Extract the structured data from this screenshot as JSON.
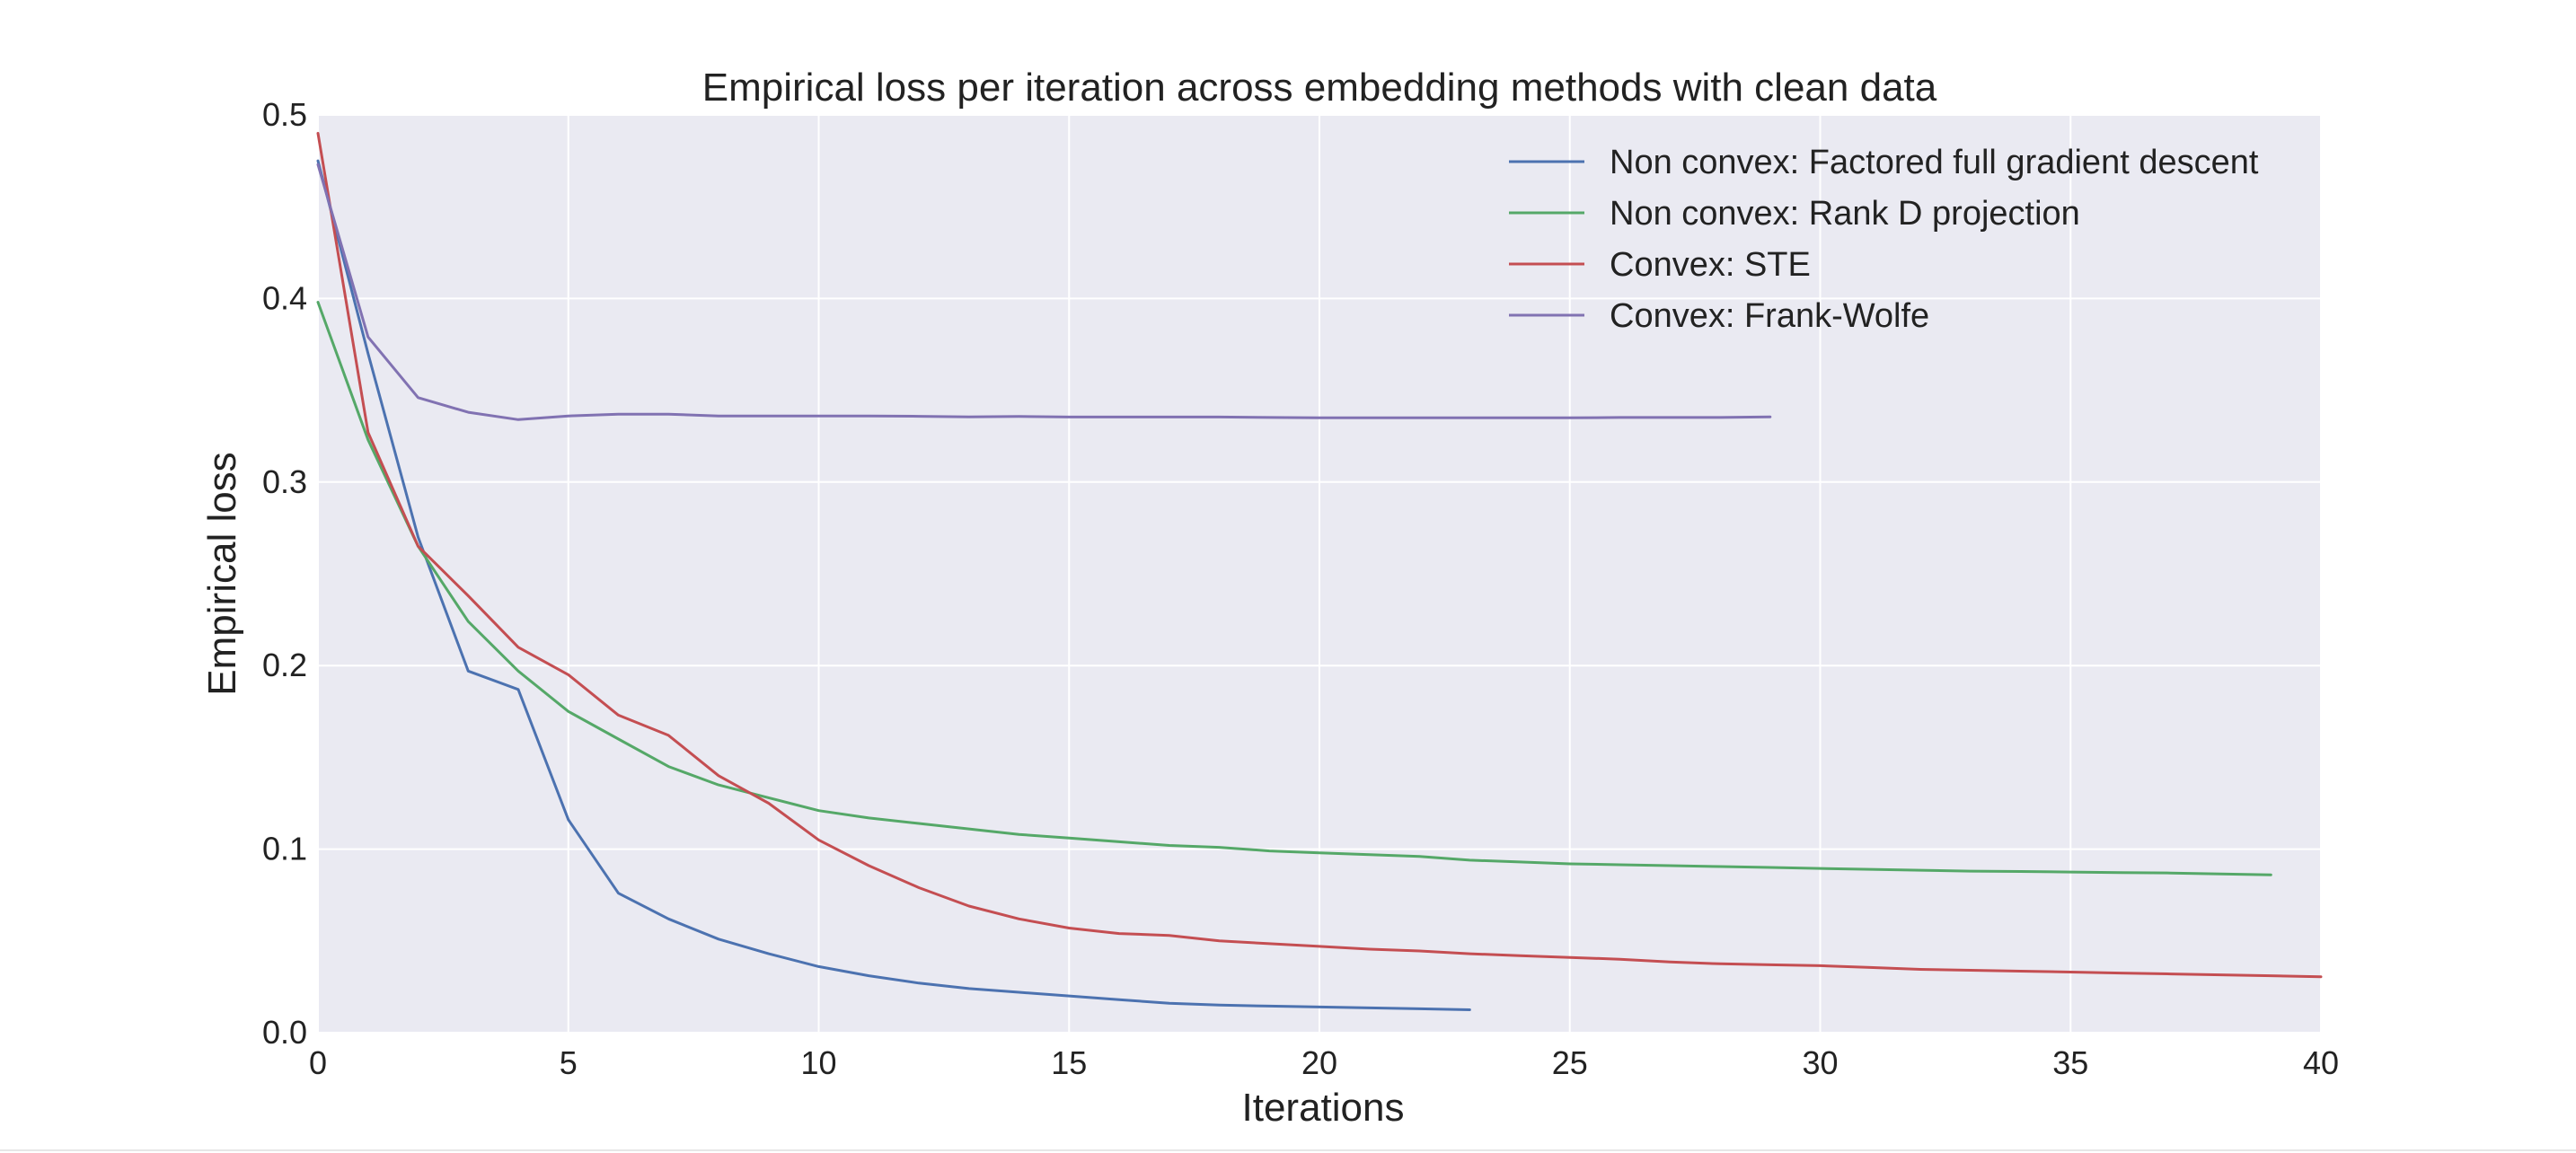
{
  "chart_data": {
    "type": "line",
    "title": "Empirical loss per iteration across embedding methods with clean data",
    "xlabel": "Iterations",
    "ylabel": "Empirical loss",
    "xlim": [
      0,
      40
    ],
    "ylim": [
      0.0,
      0.5
    ],
    "xticks": [
      0,
      5,
      10,
      15,
      20,
      25,
      30,
      35,
      40
    ],
    "xtick_labels": [
      "0",
      "5",
      "10",
      "15",
      "20",
      "25",
      "30",
      "35",
      "40"
    ],
    "yticks": [
      0.0,
      0.1,
      0.2,
      0.3,
      0.4,
      0.5
    ],
    "ytick_labels": [
      "0.0",
      "0.1",
      "0.2",
      "0.3",
      "0.4",
      "0.5"
    ],
    "grid": true,
    "legend_position": "top-right",
    "series": [
      {
        "name": "Non convex: Factored full gradient descent",
        "color": "#4c72b0",
        "x": [
          0,
          1,
          2,
          3,
          4,
          5,
          6,
          7,
          8,
          9,
          10,
          11,
          12,
          13,
          14,
          15,
          16,
          17,
          18,
          19,
          20,
          21,
          22,
          23
        ],
        "values": [
          0.475,
          0.37,
          0.27,
          0.197,
          0.187,
          0.116,
          0.076,
          0.062,
          0.051,
          0.043,
          0.036,
          0.031,
          0.027,
          0.024,
          0.022,
          0.02,
          0.018,
          0.016,
          0.015,
          0.0145,
          0.014,
          0.0135,
          0.013,
          0.0125
        ]
      },
      {
        "name": "Non convex: Rank D projection",
        "color": "#55a868",
        "x": [
          0,
          1,
          2,
          3,
          4,
          5,
          6,
          7,
          8,
          9,
          10,
          11,
          12,
          13,
          14,
          15,
          16,
          17,
          18,
          19,
          20,
          21,
          22,
          23,
          24,
          25,
          26,
          27,
          28,
          29,
          30,
          31,
          32,
          33,
          34,
          35,
          36,
          37,
          38,
          39
        ],
        "values": [
          0.398,
          0.323,
          0.265,
          0.224,
          0.197,
          0.175,
          0.16,
          0.145,
          0.135,
          0.128,
          0.121,
          0.117,
          0.114,
          0.111,
          0.108,
          0.106,
          0.104,
          0.102,
          0.101,
          0.099,
          0.098,
          0.097,
          0.096,
          0.094,
          0.093,
          0.092,
          0.0915,
          0.091,
          0.0905,
          0.09,
          0.0895,
          0.089,
          0.0885,
          0.088,
          0.0878,
          0.0875,
          0.0872,
          0.087,
          0.0865,
          0.086
        ]
      },
      {
        "name": "Convex: STE",
        "color": "#c44e52",
        "x": [
          0,
          1,
          2,
          3,
          4,
          5,
          6,
          7,
          8,
          9,
          10,
          11,
          12,
          13,
          14,
          15,
          16,
          17,
          18,
          19,
          20,
          21,
          22,
          23,
          24,
          25,
          26,
          27,
          28,
          29,
          30,
          31,
          32,
          33,
          34,
          35,
          36,
          37,
          38,
          39,
          40
        ],
        "values": [
          0.49,
          0.327,
          0.265,
          0.238,
          0.21,
          0.195,
          0.173,
          0.162,
          0.14,
          0.125,
          0.105,
          0.091,
          0.079,
          0.069,
          0.062,
          0.057,
          0.054,
          0.053,
          0.05,
          0.0485,
          0.047,
          0.0455,
          0.0445,
          0.043,
          0.042,
          0.041,
          0.04,
          0.0385,
          0.0375,
          0.037,
          0.0365,
          0.0355,
          0.0345,
          0.034,
          0.0335,
          0.033,
          0.0325,
          0.032,
          0.0315,
          0.031,
          0.0305
        ]
      },
      {
        "name": "Convex: Frank-Wolfe",
        "color": "#8172b2",
        "x": [
          0,
          1,
          2,
          3,
          4,
          5,
          6,
          7,
          8,
          9,
          10,
          11,
          12,
          13,
          14,
          15,
          16,
          17,
          18,
          19,
          20,
          21,
          22,
          23,
          24,
          25,
          26,
          27,
          28,
          29
        ],
        "values": [
          0.473,
          0.379,
          0.346,
          0.338,
          0.334,
          0.336,
          0.337,
          0.337,
          0.336,
          0.336,
          0.336,
          0.336,
          0.3358,
          0.3355,
          0.3357,
          0.3354,
          0.3354,
          0.3354,
          0.3354,
          0.3352,
          0.335,
          0.335,
          0.335,
          0.335,
          0.335,
          0.335,
          0.3352,
          0.3352,
          0.3352,
          0.3355
        ]
      }
    ]
  }
}
